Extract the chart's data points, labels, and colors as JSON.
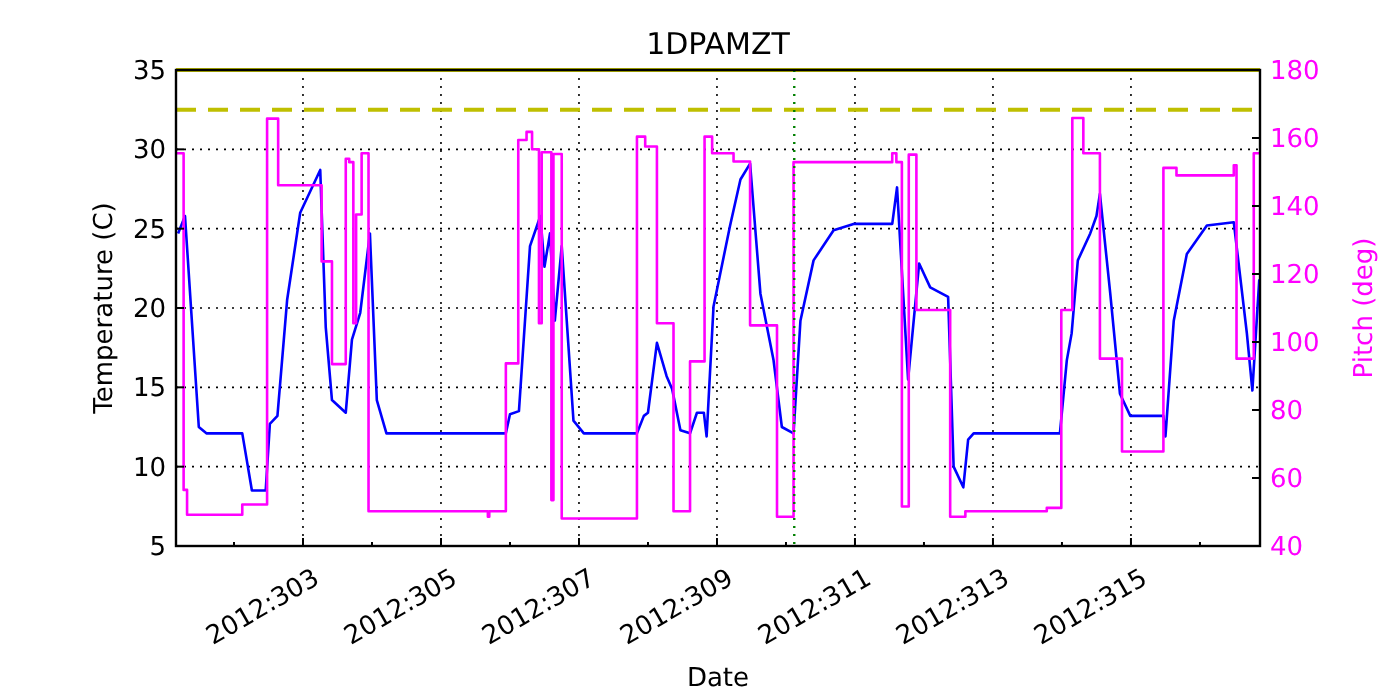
{
  "chart_data": {
    "type": "line",
    "title": "1DPAMZT",
    "xlabel": "Date",
    "ylabel": "Temperature (C)",
    "y2label": "Pitch (deg)",
    "xlim": [
      "2012-10-27T03:50",
      "2012-11-11T20:53"
    ],
    "xticks": [
      {
        "value": "2012-10-28",
        "label": null
      },
      {
        "value": "2012-10-29",
        "label": "2012:303"
      },
      {
        "value": "2012-10-30",
        "label": null
      },
      {
        "value": "2012-10-31",
        "label": "2012:305"
      },
      {
        "value": "2012-11-01",
        "label": null
      },
      {
        "value": "2012-11-02",
        "label": "2012:307"
      },
      {
        "value": "2012-11-03",
        "label": null
      },
      {
        "value": "2012-11-04",
        "label": "2012:309"
      },
      {
        "value": "2012-11-05",
        "label": null
      },
      {
        "value": "2012-11-06",
        "label": "2012:311"
      },
      {
        "value": "2012-11-07",
        "label": null
      },
      {
        "value": "2012-11-08",
        "label": "2012:313"
      },
      {
        "value": "2012-11-09",
        "label": null
      },
      {
        "value": "2012-11-10",
        "label": "2012:315"
      },
      {
        "value": "2012-11-11",
        "label": null
      }
    ],
    "ylim": [
      5,
      35
    ],
    "yticks": [
      5,
      10,
      15,
      20,
      25,
      30,
      35
    ],
    "y2lim": [
      40,
      180
    ],
    "y2ticks": [
      40,
      60,
      80,
      100,
      120,
      140,
      160,
      180
    ],
    "grid": true,
    "series": [
      {
        "color": "#0000ff",
        "x": [
          "2012-10-27T04:34",
          "2012-10-27T06:58",
          "2012-10-27T11:46",
          "2012-10-27T14:24",
          "2012-10-28T02:53",
          "2012-10-28T06:14",
          "2012-10-28T11:02",
          "2012-10-28T12:29",
          "2012-10-28T15:07",
          "2012-10-28T18:29",
          "2012-10-28T23:02",
          "2012-10-29T06:00",
          "2012-10-29T07:55",
          "2012-10-29T10:05",
          "2012-10-29T14:53",
          "2012-10-29T17:02",
          "2012-10-29T19:55",
          "2012-10-29T23:17",
          "2012-10-30T01:41",
          "2012-10-30T05:02",
          "2012-10-31T22:34",
          "2012-11-01T00:00",
          "2012-11-01T03:07",
          "2012-11-01T06:58",
          "2012-11-01T10:34",
          "2012-11-01T12:00",
          "2012-11-01T13:55",
          "2012-11-01T15:36",
          "2012-11-01T18:00",
          "2012-11-01T22:05",
          "2012-11-02T01:41",
          "2012-11-02T20:10",
          "2012-11-02T22:34",
          "2012-11-03T00:00",
          "2012-11-03T03:07",
          "2012-11-03T06:29",
          "2012-11-03T08:24",
          "2012-11-03T11:17",
          "2012-11-03T14:38",
          "2012-11-03T17:02",
          "2012-11-03T19:26",
          "2012-11-03T20:24",
          "2012-11-03T22:48",
          "2012-11-04T04:34",
          "2012-11-04T08:10",
          "2012-11-04T11:31",
          "2012-11-04T15:07",
          "2012-11-04T19:41",
          "2012-11-04T22:34",
          "2012-11-05T02:38",
          "2012-11-05T05:02",
          "2012-11-05T09:36",
          "2012-11-05T16:34",
          "2012-11-05T23:31",
          "2012-11-06T12:58",
          "2012-11-06T14:38",
          "2012-11-06T18:29",
          "2012-11-06T22:19",
          "2012-11-07T02:10",
          "2012-11-07T08:24",
          "2012-11-07T10:19",
          "2012-11-07T13:41",
          "2012-11-07T15:22",
          "2012-11-07T17:17",
          "2012-11-08T23:17",
          "2012-11-09T01:41",
          "2012-11-09T03:22",
          "2012-11-09T05:31",
          "2012-11-09T09:50",
          "2012-11-09T12:00",
          "2012-11-09T13:12",
          "2012-11-09T16:48",
          "2012-11-09T20:10",
          "2012-11-09T23:46",
          "2012-11-10T11:17",
          "2012-11-10T12:00",
          "2012-11-10T14:53",
          "2012-11-10T19:26",
          "2012-11-11T02:24",
          "2012-11-11T11:46",
          "2012-11-11T16:19",
          "2012-11-11T18:14",
          "2012-11-11T20:38"
        ],
        "values": [
          24.7,
          25.8,
          12.5,
          12.1,
          12.1,
          8.5,
          8.5,
          12.7,
          13.2,
          20.5,
          26.0,
          28.7,
          18.8,
          14.2,
          13.4,
          18.0,
          19.7,
          24.7,
          14.2,
          12.1,
          12.1,
          13.3,
          13.5,
          23.9,
          25.8,
          22.6,
          24.7,
          19.2,
          23.9,
          12.9,
          12.1,
          12.1,
          13.2,
          13.4,
          17.8,
          15.7,
          14.9,
          12.3,
          12.1,
          13.4,
          13.4,
          11.9,
          20.1,
          25.2,
          28.1,
          29.1,
          20.9,
          16.7,
          12.5,
          12.1,
          19.2,
          23.0,
          24.9,
          25.3,
          25.3,
          27.6,
          15.5,
          22.8,
          21.3,
          20.7,
          10.0,
          8.7,
          11.7,
          12.1,
          12.1,
          16.7,
          18.4,
          23.0,
          24.7,
          25.8,
          27.2,
          20.9,
          14.6,
          13.2,
          13.2,
          11.9,
          19.2,
          23.4,
          25.2,
          25.4,
          18.4,
          14.8,
          21.8
        ]
      },
      {
        "type": "step",
        "axis": "y2",
        "color": "#ff00ff",
        "x": [
          "2012-10-27T03:50",
          "2012-10-27T06:29",
          "2012-10-27T07:41",
          "2012-10-28T02:53",
          "2012-10-28T11:31",
          "2012-10-28T15:22",
          "2012-10-29T06:29",
          "2012-10-29T10:05",
          "2012-10-29T14:53",
          "2012-10-29T16:05",
          "2012-10-29T17:31",
          "2012-10-29T18:29",
          "2012-10-29T20:24",
          "2012-10-29T22:48",
          "2012-10-31T16:19",
          "2012-10-31T16:48",
          "2012-10-31T22:34",
          "2012-11-01T02:53",
          "2012-11-01T05:46",
          "2012-11-01T07:41",
          "2012-11-01T10:05",
          "2012-11-01T11:02",
          "2012-11-01T14:24",
          "2012-11-01T15:07",
          "2012-11-01T18:00",
          "2012-11-02T20:10",
          "2012-11-02T23:02",
          "2012-11-03T03:07",
          "2012-11-03T08:53",
          "2012-11-03T14:38",
          "2012-11-03T19:41",
          "2012-11-03T22:19",
          "2012-11-04T05:46",
          "2012-11-04T11:31",
          "2012-11-04T20:53",
          "2012-11-05T02:38",
          "2012-11-06T12:58",
          "2012-11-06T14:24",
          "2012-11-06T16:19",
          "2012-11-06T18:43",
          "2012-11-06T21:22",
          "2012-11-07T09:07",
          "2012-11-07T14:24",
          "2012-11-08T18:43",
          "2012-11-08T23:46",
          "2012-11-09T03:36",
          "2012-11-09T07:26",
          "2012-11-09T13:12",
          "2012-11-09T20:53",
          "2012-11-10T11:17",
          "2012-11-10T15:50",
          "2012-11-11T11:46",
          "2012-11-11T12:43",
          "2012-11-11T18:43",
          "2012-11-11T20:53"
        ],
        "values": [
          155.5,
          56.5,
          49.2,
          52.2,
          165.7,
          146.1,
          123.7,
          93.5,
          153.9,
          152.9,
          105.5,
          137.5,
          155.5,
          50.2,
          48.6,
          50.2,
          93.7,
          159.4,
          161.8,
          156.7,
          105.5,
          155.8,
          53.5,
          155.3,
          48.1,
          160.4,
          157.5,
          105.5,
          50.2,
          94.3,
          160.4,
          155.5,
          153.1,
          104.9,
          48.6,
          152.9,
          155.5,
          152.9,
          51.6,
          155.1,
          109.4,
          48.6,
          50.2,
          51.2,
          109.4,
          165.9,
          155.5,
          95.1,
          67.8,
          151.2,
          149.0,
          152.0,
          95.1,
          155.5,
          155.5
        ]
      }
    ],
    "ref_lines": [
      {
        "axis": "y",
        "value": 35,
        "color": "#bfbf00",
        "line_style": "solid"
      },
      {
        "axis": "y",
        "value": 32.5,
        "color": "#bfbf00",
        "line_style": "dashed"
      },
      {
        "axis": "x",
        "value": "2012-11-05T02:53",
        "color": "#008000",
        "line_style": "dotted"
      }
    ]
  }
}
